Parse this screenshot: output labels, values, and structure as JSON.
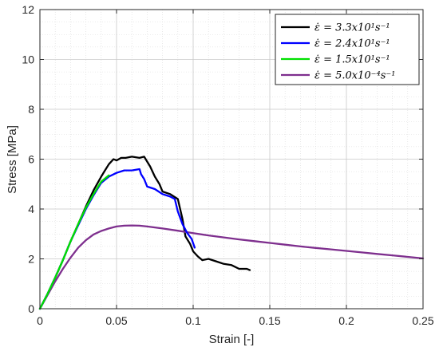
{
  "chart_data": {
    "type": "line",
    "title": "",
    "xlabel": "Strain [-]",
    "ylabel": "Stress [MPa]",
    "xlim": [
      0,
      0.25
    ],
    "ylim": [
      0,
      12
    ],
    "x_ticks": [
      0,
      0.05,
      0.1,
      0.15,
      0.2,
      0.25
    ],
    "x_tick_labels": [
      "0",
      "0.05",
      "0.1",
      "0.15",
      "0.2",
      "0.25"
    ],
    "y_ticks": [
      0,
      2,
      4,
      6,
      8,
      10,
      12
    ],
    "y_tick_labels": [
      "0",
      "2",
      "4",
      "6",
      "8",
      "10",
      "12"
    ],
    "grid": true,
    "minor_grid": true,
    "legend_position": "top-right",
    "series": [
      {
        "name": "ε̇ = 3.3x10¹s⁻¹",
        "color": "#000000",
        "points": [
          [
            0,
            0
          ],
          [
            0.005,
            0.6
          ],
          [
            0.01,
            1.25
          ],
          [
            0.015,
            1.95
          ],
          [
            0.02,
            2.7
          ],
          [
            0.025,
            3.4
          ],
          [
            0.03,
            4.1
          ],
          [
            0.035,
            4.75
          ],
          [
            0.04,
            5.3
          ],
          [
            0.042,
            5.5
          ],
          [
            0.045,
            5.8
          ],
          [
            0.048,
            6.0
          ],
          [
            0.05,
            5.95
          ],
          [
            0.053,
            6.05
          ],
          [
            0.056,
            6.05
          ],
          [
            0.06,
            6.1
          ],
          [
            0.065,
            6.05
          ],
          [
            0.068,
            6.1
          ],
          [
            0.07,
            5.9
          ],
          [
            0.072,
            5.7
          ],
          [
            0.075,
            5.3
          ],
          [
            0.078,
            5.0
          ],
          [
            0.08,
            4.7
          ],
          [
            0.085,
            4.6
          ],
          [
            0.09,
            4.4
          ],
          [
            0.093,
            3.6
          ],
          [
            0.095,
            2.9
          ],
          [
            0.098,
            2.6
          ],
          [
            0.1,
            2.3
          ],
          [
            0.103,
            2.1
          ],
          [
            0.106,
            1.95
          ],
          [
            0.11,
            2.0
          ],
          [
            0.115,
            1.9
          ],
          [
            0.12,
            1.8
          ],
          [
            0.125,
            1.75
          ],
          [
            0.13,
            1.6
          ],
          [
            0.135,
            1.6
          ],
          [
            0.137,
            1.55
          ]
        ]
      },
      {
        "name": "ε̇ = 2.4x10¹s⁻¹",
        "color": "#0000ff",
        "points": [
          [
            0,
            0
          ],
          [
            0.005,
            0.6
          ],
          [
            0.01,
            1.25
          ],
          [
            0.015,
            1.95
          ],
          [
            0.02,
            2.7
          ],
          [
            0.025,
            3.35
          ],
          [
            0.03,
            4.0
          ],
          [
            0.035,
            4.55
          ],
          [
            0.04,
            5.05
          ],
          [
            0.045,
            5.3
          ],
          [
            0.05,
            5.45
          ],
          [
            0.055,
            5.55
          ],
          [
            0.06,
            5.55
          ],
          [
            0.065,
            5.6
          ],
          [
            0.066,
            5.4
          ],
          [
            0.068,
            5.2
          ],
          [
            0.07,
            4.9
          ],
          [
            0.075,
            4.8
          ],
          [
            0.08,
            4.6
          ],
          [
            0.085,
            4.5
          ],
          [
            0.088,
            4.4
          ],
          [
            0.09,
            3.9
          ],
          [
            0.093,
            3.4
          ],
          [
            0.096,
            3.05
          ],
          [
            0.099,
            2.8
          ],
          [
            0.101,
            2.45
          ]
        ]
      },
      {
        "name": "ε̇ = 1.5x10¹s⁻¹",
        "color": "#00e000",
        "points": [
          [
            0,
            0
          ],
          [
            0.005,
            0.6
          ],
          [
            0.01,
            1.25
          ],
          [
            0.015,
            1.95
          ],
          [
            0.02,
            2.7
          ],
          [
            0.025,
            3.4
          ],
          [
            0.03,
            4.05
          ],
          [
            0.035,
            4.6
          ],
          [
            0.04,
            5.1
          ],
          [
            0.045,
            5.35
          ]
        ]
      },
      {
        "name": "ε̇ = 5.0x10⁻⁴s⁻¹",
        "color": "#7e2f8e",
        "points": [
          [
            0,
            0
          ],
          [
            0.005,
            0.55
          ],
          [
            0.01,
            1.1
          ],
          [
            0.015,
            1.6
          ],
          [
            0.02,
            2.05
          ],
          [
            0.025,
            2.45
          ],
          [
            0.03,
            2.75
          ],
          [
            0.035,
            2.98
          ],
          [
            0.04,
            3.12
          ],
          [
            0.045,
            3.22
          ],
          [
            0.05,
            3.3
          ],
          [
            0.055,
            3.33
          ],
          [
            0.06,
            3.34
          ],
          [
            0.065,
            3.33
          ],
          [
            0.07,
            3.3
          ],
          [
            0.08,
            3.22
          ],
          [
            0.09,
            3.13
          ],
          [
            0.1,
            3.03
          ],
          [
            0.11,
            2.94
          ],
          [
            0.12,
            2.86
          ],
          [
            0.13,
            2.78
          ],
          [
            0.14,
            2.71
          ],
          [
            0.15,
            2.64
          ],
          [
            0.16,
            2.57
          ],
          [
            0.17,
            2.5
          ],
          [
            0.18,
            2.44
          ],
          [
            0.19,
            2.38
          ],
          [
            0.2,
            2.32
          ],
          [
            0.21,
            2.26
          ],
          [
            0.22,
            2.2
          ],
          [
            0.23,
            2.14
          ],
          [
            0.24,
            2.08
          ],
          [
            0.25,
            2.02
          ]
        ]
      }
    ]
  }
}
